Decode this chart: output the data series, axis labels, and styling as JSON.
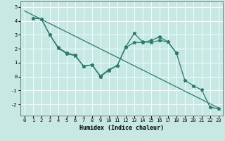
{
  "xlabel": "Humidex (Indice chaleur)",
  "xlim": [
    -0.5,
    23.5
  ],
  "ylim": [
    -2.8,
    5.4
  ],
  "xticks": [
    0,
    1,
    2,
    3,
    4,
    5,
    6,
    7,
    8,
    9,
    10,
    11,
    12,
    13,
    14,
    15,
    16,
    17,
    18,
    19,
    20,
    21,
    22,
    23
  ],
  "yticks": [
    -2,
    -1,
    0,
    1,
    2,
    3,
    4,
    5
  ],
  "line_color": "#2a7a6e",
  "bg_color": "#c8e8e4",
  "grid_color": "#ffffff",
  "line1_x": [
    0,
    23
  ],
  "line1_y": [
    4.72,
    -2.25
  ],
  "line2_x": [
    1,
    2,
    3,
    4,
    5,
    6,
    7,
    8,
    9,
    10,
    11,
    12,
    13,
    14,
    15,
    16,
    17,
    18
  ],
  "line2_y": [
    4.2,
    4.15,
    3.0,
    2.1,
    1.7,
    1.55,
    0.75,
    0.85,
    0.05,
    0.5,
    0.8,
    2.15,
    3.1,
    2.5,
    2.45,
    2.6,
    2.5,
    1.7
  ],
  "line3_x": [
    1,
    2,
    3,
    4,
    5,
    6,
    7,
    8,
    9,
    10,
    11,
    12,
    13,
    14,
    15,
    16,
    17,
    18,
    19,
    20,
    21,
    22,
    23
  ],
  "line3_y": [
    4.2,
    4.15,
    3.0,
    2.05,
    1.65,
    1.5,
    0.75,
    0.85,
    0.0,
    0.45,
    0.8,
    2.1,
    2.45,
    2.45,
    2.6,
    2.85,
    2.5,
    1.7,
    -0.25,
    -0.65,
    -0.95,
    -2.2,
    -2.3
  ],
  "marker": "*",
  "markersize": 3.5,
  "linewidth": 0.9,
  "tick_fontsize": 5.0,
  "xlabel_fontsize": 6.0
}
